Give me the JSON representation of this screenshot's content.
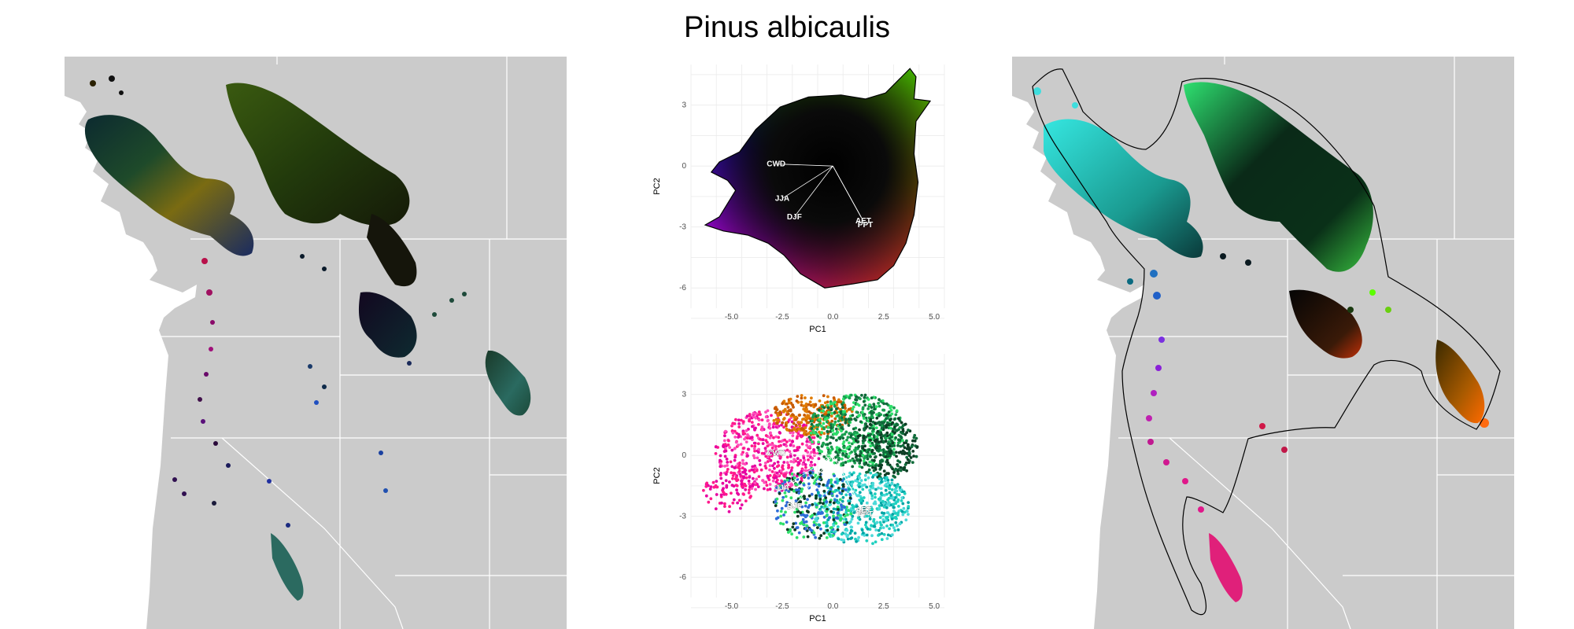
{
  "title": "Pinus albicaulis",
  "chart_data": [
    {
      "type": "map",
      "panel": "left",
      "description_color": "per-cell climate color",
      "colors": {
        "background": "#cbcbcb",
        "water": "#ffffff",
        "boundaries": "#ffffff"
      }
    },
    {
      "type": "scatter",
      "panel": "pca-top",
      "xlabel": "PC1",
      "ylabel": "PC2",
      "xlim": [
        -7,
        5.5
      ],
      "ylim": [
        -7,
        5
      ],
      "xticks": [
        "-5.0",
        "-2.5",
        "0.0",
        "2.5",
        "5.0"
      ],
      "yticks": [
        "3",
        "0",
        "-3",
        "-6"
      ],
      "xtick_values": [
        -5,
        -2.5,
        0,
        2.5,
        5
      ],
      "ytick_values": [
        3,
        0,
        -3,
        -6
      ],
      "grid": true,
      "loadings": [
        {
          "label": "CWD",
          "x": -2.8,
          "y": 0.1
        },
        {
          "label": "JJA",
          "x": -2.5,
          "y": -1.6
        },
        {
          "label": "DJF",
          "x": -1.9,
          "y": -2.5
        },
        {
          "label": "PPT",
          "x": 1.6,
          "y": -2.9
        },
        {
          "label": "AET",
          "x": 1.5,
          "y": -2.7
        }
      ],
      "corner_colors": {
        "left": "#0b16ff",
        "top_right": "#5cff00",
        "right": "#ffd800",
        "bottom_right": "#ff3b00",
        "bottom": "#ff00ff",
        "center": "#000000"
      }
    },
    {
      "type": "scatter",
      "panel": "pca-bottom",
      "xlabel": "PC1",
      "ylabel": "PC2",
      "xlim": [
        -7,
        5.5
      ],
      "ylim": [
        -7,
        5
      ],
      "xticks": [
        "-5.0",
        "-2.5",
        "0.0",
        "2.5",
        "5.0"
      ],
      "yticks": [
        "3",
        "0",
        "-3",
        "-6"
      ],
      "xtick_values": [
        -5,
        -2.5,
        0,
        2.5,
        5
      ],
      "ytick_values": [
        3,
        0,
        -3,
        -6
      ],
      "grid": true,
      "loadings": [
        {
          "label": "CWD",
          "x": -2.8,
          "y": 0.1
        },
        {
          "label": "JJA",
          "x": -2.5,
          "y": -1.6
        },
        {
          "label": "DJF",
          "x": -1.9,
          "y": -2.5
        },
        {
          "label": "PPT",
          "x": 1.6,
          "y": -2.9
        },
        {
          "label": "AET",
          "x": 1.5,
          "y": -2.7
        }
      ],
      "point_colors": [
        "#ff1a8c",
        "#e600a0",
        "#ff4db8",
        "#c85a00",
        "#e07b00",
        "#1aa050",
        "#0f6b3a",
        "#20d0c0",
        "#2ee06a",
        "#00a6a6",
        "#2e6dd8",
        "#4dd9d9",
        "#0d3d24"
      ]
    },
    {
      "type": "map",
      "panel": "right",
      "description_color": "color by geographic position with convex boundary",
      "colors": {
        "background": "#cbcbcb",
        "water": "#ffffff",
        "boundaries": "#ffffff",
        "outline": "#000000"
      }
    }
  ]
}
